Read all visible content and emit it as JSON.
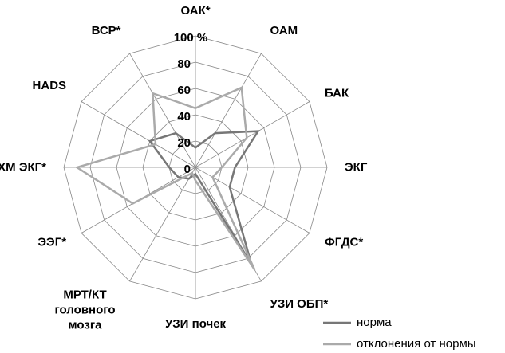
{
  "chart_data": {
    "type": "radar",
    "categories": [
      "ОАК*",
      "ОАМ",
      "БАК",
      "ЭКГ",
      "ФГДС*",
      "УЗИ ОБП*",
      "УЗИ почек",
      "МРТ/КТ головного мозга",
      "ЭЭГ*",
      "ХМ ЭКГ*",
      "HADS",
      "ВСР*"
    ],
    "series": [
      {
        "name": "норма",
        "color": "#777777",
        "values": [
          15,
          30,
          55,
          30,
          30,
          85,
          5,
          10,
          15,
          20,
          40,
          30
        ]
      },
      {
        "name": "отклонения от нормы",
        "color": "#aaaaaa",
        "values": [
          45,
          70,
          45,
          20,
          15,
          90,
          10,
          5,
          55,
          90,
          35,
          65
        ]
      }
    ],
    "ylim": [
      0,
      100
    ],
    "yticks": [
      0,
      20,
      40,
      60,
      80,
      {
        "value": 100,
        "label": "100 %"
      }
    ],
    "grid": true,
    "legend": "bottom-right"
  }
}
